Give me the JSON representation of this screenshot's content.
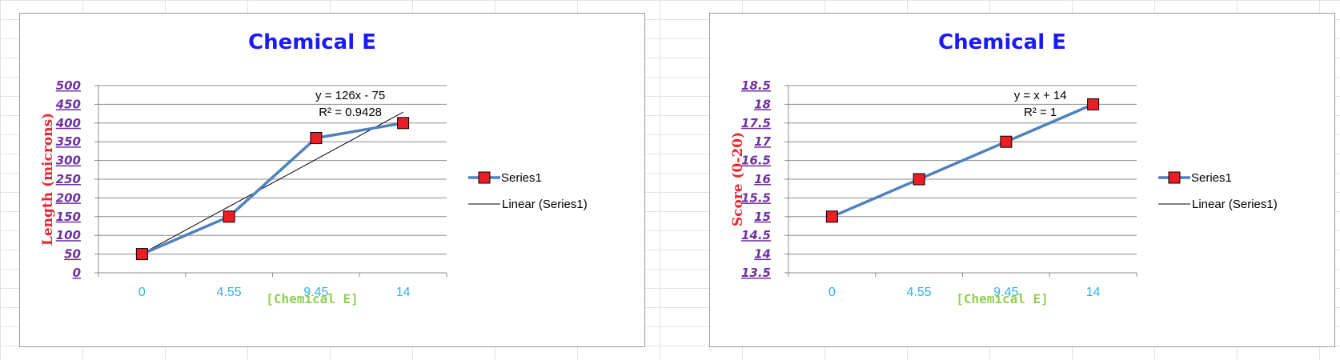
{
  "chart_data": [
    {
      "type": "line",
      "title": "Chemical E",
      "xlabel": "[Chemical E]",
      "ylabel": "Length (microns)",
      "categories": [
        "0",
        "4.55",
        "9.45",
        "14"
      ],
      "series": [
        {
          "name": "Series1",
          "values": [
            50,
            150,
            360,
            400
          ]
        }
      ],
      "trendline": {
        "name": "Linear (Series1)",
        "slope": 126,
        "intercept": -75,
        "equation": "y = 126x - 75",
        "r_squared": "R² = 0.9428"
      },
      "ylim": [
        0,
        500
      ],
      "yticks": [
        "0",
        "50",
        "100",
        "150",
        "200",
        "250",
        "300",
        "350",
        "400",
        "450",
        "500"
      ],
      "grid": true,
      "legend": "right",
      "colors": {
        "title": "#1a1aff",
        "ylabel": "#e8262e",
        "xlabel": "#92d050",
        "xticks": "#2bb3f0",
        "yticks": "#7030a0",
        "series_line": "#4f81bd",
        "marker": "#ee1c24",
        "trend": "#000000"
      }
    },
    {
      "type": "line",
      "title": "Chemical E",
      "xlabel": "[Chemical E]",
      "ylabel": "Score (0-20)",
      "categories": [
        "0",
        "4.55",
        "9.45",
        "14"
      ],
      "series": [
        {
          "name": "Series1",
          "values": [
            15,
            16,
            17,
            18
          ]
        }
      ],
      "trendline": {
        "name": "Linear (Series1)",
        "slope": 1,
        "intercept": 14,
        "equation": "y = x + 14",
        "r_squared": "R² = 1"
      },
      "ylim": [
        13.5,
        18.5
      ],
      "yticks": [
        "13.5",
        "14",
        "14.5",
        "15",
        "15.5",
        "16",
        "16.5",
        "17",
        "17.5",
        "18",
        "18.5"
      ],
      "grid": true,
      "legend": "right",
      "colors": {
        "title": "#1a1aff",
        "ylabel": "#e8262e",
        "xlabel": "#92d050",
        "xticks": "#2bb3f0",
        "yticks": "#7030a0",
        "series_line": "#4f81bd",
        "marker": "#ee1c24",
        "trend": "#000000"
      }
    }
  ]
}
